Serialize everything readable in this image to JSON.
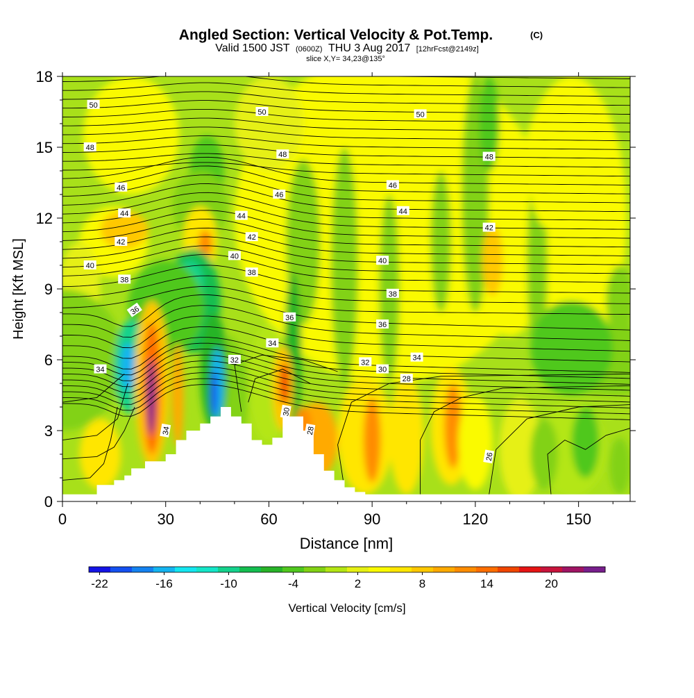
{
  "chart_data": {
    "type": "heatmap",
    "title": "Angled Section: Vertical Velocity & Pot.Temp.",
    "title_unit": "(C)",
    "subtitle_parts": [
      "Valid 1500 JST",
      "(0600Z)",
      "THU 3 Aug 2017",
      "[12hrFcst@2149z]"
    ],
    "subtitle2": "slice X,Y= 34,23@135°",
    "xlabel": "Distance [nm]",
    "ylabel": "Height [Kft MSL]",
    "xlim": [
      0,
      165
    ],
    "ylim": [
      0,
      18
    ],
    "x_ticks": [
      0,
      30,
      60,
      90,
      120,
      150
    ],
    "y_ticks": [
      0,
      3,
      6,
      9,
      12,
      15,
      18
    ],
    "colorbar": {
      "label": "Vertical Velocity [cm/s]",
      "tick_labels": [
        "-22",
        "-16",
        "-10",
        "-4",
        "2",
        "8",
        "14",
        "20"
      ],
      "tick_values": [
        -22,
        -16,
        -10,
        -4,
        2,
        8,
        14,
        20
      ],
      "min": -23,
      "max": 25,
      "colors": [
        "#1414e6",
        "#1450f0",
        "#1482f0",
        "#14b4f0",
        "#14e6f0",
        "#14e6c8",
        "#14d28c",
        "#14be50",
        "#28b428",
        "#50c81e",
        "#82d214",
        "#b4e614",
        "#e6f014",
        "#fafa00",
        "#ffe600",
        "#ffc800",
        "#ffaa00",
        "#ff8c00",
        "#ff6e00",
        "#f04600",
        "#e61414",
        "#c8143c",
        "#a01464",
        "#781e8c"
      ]
    },
    "theta_contour_labels": [
      "26",
      "28",
      "28",
      "30",
      "30",
      "32",
      "32",
      "34",
      "34",
      "34",
      "34",
      "36",
      "36",
      "36",
      "38",
      "38",
      "38",
      "40",
      "40",
      "40",
      "42",
      "42",
      "42",
      "44",
      "44",
      "44",
      "46",
      "46",
      "46",
      "48",
      "48",
      "48",
      "50",
      "50",
      "50"
    ],
    "terrain_profile": {
      "x": [
        0,
        10,
        10,
        15,
        15,
        18,
        18,
        20,
        20,
        24,
        24,
        30,
        30,
        33,
        33,
        36,
        36,
        40,
        40,
        43,
        43,
        46,
        46,
        49,
        49,
        52,
        52,
        55,
        55,
        58,
        58,
        61,
        61,
        64,
        64,
        67,
        67,
        70,
        70,
        73,
        73,
        76,
        76,
        79,
        79,
        82,
        82,
        85,
        85,
        88,
        88,
        92,
        92,
        165
      ],
      "y": [
        0.3,
        0.3,
        0.7,
        0.7,
        0.9,
        0.9,
        1.1,
        1.1,
        1.4,
        1.4,
        1.7,
        1.7,
        2.0,
        2.0,
        2.6,
        2.6,
        3.0,
        3.0,
        3.3,
        3.3,
        3.6,
        3.6,
        4.0,
        4.0,
        3.6,
        3.6,
        3.3,
        3.3,
        2.6,
        2.6,
        2.4,
        2.4,
        2.7,
        2.7,
        3.6,
        3.6,
        3.6,
        3.6,
        3.0,
        3.0,
        2.0,
        2.0,
        1.3,
        1.3,
        0.9,
        0.9,
        0.6,
        0.6,
        0.4,
        0.4,
        0.3,
        0.3,
        0.3,
        0.3
      ]
    }
  }
}
